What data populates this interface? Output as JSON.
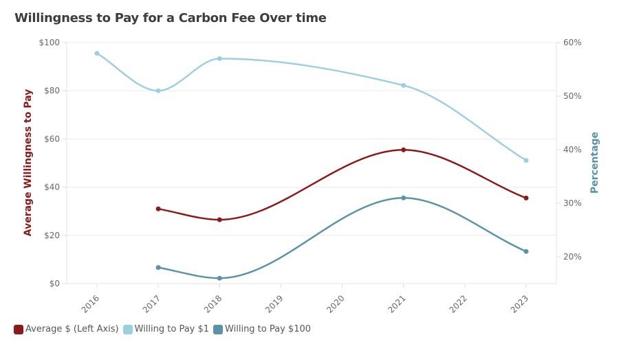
{
  "chart_data": {
    "type": "line",
    "title": "Willingness to Pay for a Carbon Fee Over time",
    "xlabel": "",
    "categories": [
      "2016",
      "2017",
      "2018",
      "2019",
      "2020",
      "2021",
      "2022",
      "2023"
    ],
    "y_left": {
      "label": "Average Willingness to Pay",
      "range": [
        0,
        100
      ],
      "ticks": [
        0,
        20,
        40,
        60,
        80,
        100
      ],
      "tick_labels": [
        "$0",
        "$20",
        "$40",
        "$60",
        "$80",
        "$100"
      ],
      "color": "#8b1a1a"
    },
    "y_right": {
      "label": "Percentage",
      "range": [
        15,
        60
      ],
      "ticks": [
        20,
        30,
        40,
        50,
        60
      ],
      "tick_labels": [
        "20%",
        "30%",
        "40%",
        "50%",
        "60%"
      ],
      "color": "#5a93a8"
    },
    "grid": true,
    "legend_position": "bottom-left",
    "series": [
      {
        "name": "Average $ (Left Axis)",
        "axis": "left",
        "color": "#8b1a1a",
        "points": [
          {
            "x": "2017",
            "y": 31
          },
          {
            "x": "2018",
            "y": 26.5
          },
          {
            "x": "2021",
            "y": 55.5
          },
          {
            "x": "2023",
            "y": 35.5
          }
        ]
      },
      {
        "name": "Willing to Pay $1",
        "axis": "right",
        "color": "#9ecfe0",
        "points": [
          {
            "x": "2016",
            "y": 58
          },
          {
            "x": "2017",
            "y": 51
          },
          {
            "x": "2018",
            "y": 57
          },
          {
            "x": "2021",
            "y": 52
          },
          {
            "x": "2023",
            "y": 38
          }
        ]
      },
      {
        "name": "Willing to Pay $100",
        "axis": "right",
        "color": "#5a93a8",
        "points": [
          {
            "x": "2017",
            "y": 18
          },
          {
            "x": "2018",
            "y": 16
          },
          {
            "x": "2021",
            "y": 31
          },
          {
            "x": "2023",
            "y": 21
          }
        ]
      }
    ]
  }
}
